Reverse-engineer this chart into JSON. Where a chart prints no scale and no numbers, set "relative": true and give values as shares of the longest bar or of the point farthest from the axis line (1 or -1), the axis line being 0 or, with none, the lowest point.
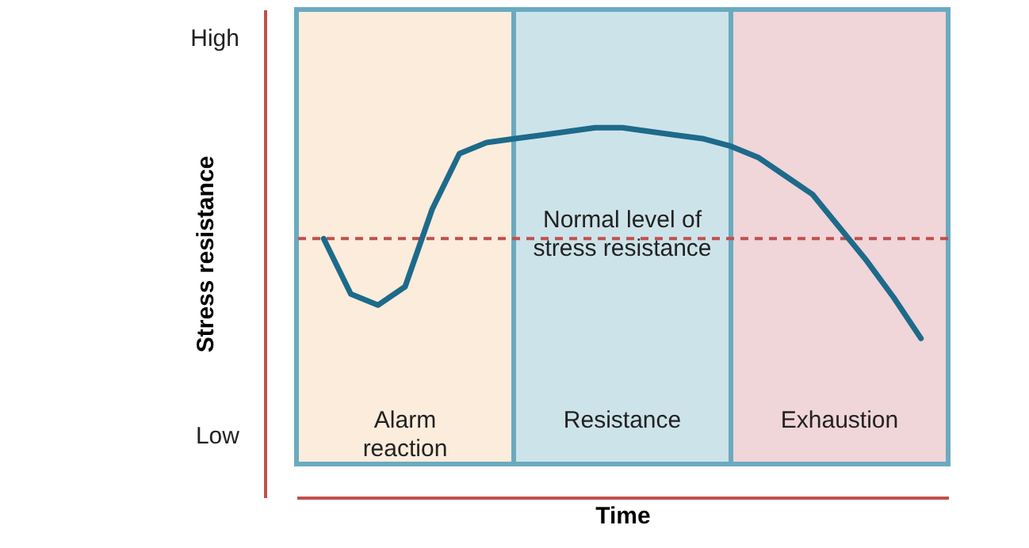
{
  "chart_data": {
    "type": "line",
    "relative": true,
    "xlabel": "Time",
    "ylabel": "Stress resistance",
    "marker": "none",
    "line_style": "solid",
    "categories": [
      null,
      null,
      null,
      null,
      null,
      null,
      null,
      null,
      null,
      null,
      null,
      null,
      null,
      null,
      null,
      null,
      null,
      null,
      null,
      null,
      null,
      null,
      null
    ],
    "series": [
      {
        "color": "#1d6a8a",
        "values": [
          0.7,
          0.55,
          0.52,
          0.57,
          0.78,
          0.93,
          0.96,
          0.97,
          0.98,
          0.99,
          1.0,
          1.0,
          0.99,
          0.98,
          0.97,
          0.95,
          0.92,
          0.87,
          0.82,
          0.73,
          0.64,
          0.54,
          0.43
        ]
      }
    ],
    "ref_lines": [
      {
        "axis": "y",
        "value": 0.7,
        "label": "Normal level of\nstress resistance",
        "color": "#c0504d",
        "line_style": "dashed"
      }
    ],
    "annotations": [
      "High",
      "Low",
      "Alarm\nreaction",
      "Resistance",
      "Exhaustion"
    ]
  }
}
